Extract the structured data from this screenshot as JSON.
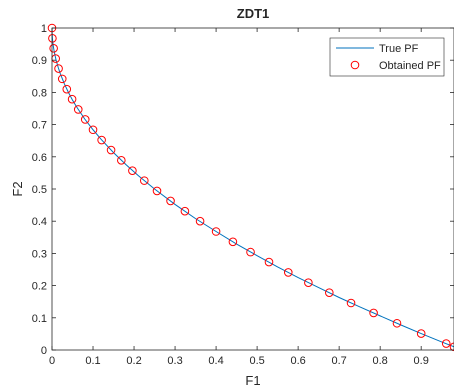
{
  "chart_data": {
    "type": "line",
    "title": "ZDT1",
    "xlabel": "F1",
    "ylabel": "F2",
    "xlim": [
      0,
      0.98
    ],
    "ylim": [
      0,
      1
    ],
    "xticks": [
      0,
      0.1,
      0.2,
      0.3,
      0.4,
      0.5,
      0.6,
      0.7,
      0.8,
      0.9
    ],
    "xtick_labels": [
      "0",
      "0.1",
      "0.2",
      "0.3",
      "0.4",
      "0.5",
      "0.6",
      "0.7",
      "0.8",
      "0.9"
    ],
    "yticks": [
      0,
      0.1,
      0.2,
      0.3,
      0.4,
      0.5,
      0.6,
      0.7,
      0.8,
      0.9,
      1
    ],
    "ytick_labels": [
      "0",
      "0.1",
      "0.2",
      "0.3",
      "0.4",
      "0.5",
      "0.6",
      "0.7",
      "0.8",
      "0.9",
      "1"
    ],
    "grid": false,
    "legend_position": "top-right",
    "series": [
      {
        "name": "True PF",
        "style": "line",
        "color": "#0072BD",
        "x": [
          0,
          0.0005,
          0.001,
          0.002,
          0.004,
          0.006,
          0.01,
          0.015,
          0.02,
          0.03,
          0.04,
          0.05,
          0.06,
          0.08,
          0.1,
          0.12,
          0.15,
          0.18,
          0.21,
          0.25,
          0.3,
          0.35,
          0.4,
          0.45,
          0.5,
          0.55,
          0.6,
          0.65,
          0.7,
          0.75,
          0.8,
          0.85,
          0.9,
          0.95,
          0.98
        ],
        "y": [
          1,
          0.978,
          0.968,
          0.955,
          0.937,
          0.923,
          0.9,
          0.878,
          0.859,
          0.827,
          0.8,
          0.776,
          0.755,
          0.717,
          0.684,
          0.654,
          0.613,
          0.576,
          0.542,
          0.5,
          0.452,
          0.408,
          0.368,
          0.329,
          0.293,
          0.258,
          0.225,
          0.194,
          0.163,
          0.134,
          0.106,
          0.078,
          0.051,
          0.025,
          0.01
        ]
      },
      {
        "name": "Obtained PF",
        "style": "markers",
        "marker": "circle",
        "color": "#FF0000",
        "x": [
          0,
          0.001,
          0.004,
          0.009,
          0.016,
          0.025,
          0.036,
          0.049,
          0.064,
          0.081,
          0.1,
          0.121,
          0.144,
          0.169,
          0.196,
          0.225,
          0.256,
          0.289,
          0.324,
          0.361,
          0.4,
          0.441,
          0.484,
          0.529,
          0.576,
          0.625,
          0.676,
          0.729,
          0.784,
          0.841,
          0.9,
          0.961,
          0.98
        ],
        "y": [
          1,
          0.968,
          0.937,
          0.905,
          0.874,
          0.842,
          0.81,
          0.779,
          0.747,
          0.716,
          0.684,
          0.652,
          0.621,
          0.589,
          0.557,
          0.526,
          0.494,
          0.463,
          0.431,
          0.4,
          0.368,
          0.336,
          0.304,
          0.273,
          0.241,
          0.209,
          0.178,
          0.146,
          0.115,
          0.083,
          0.051,
          0.02,
          0.01
        ]
      }
    ]
  }
}
